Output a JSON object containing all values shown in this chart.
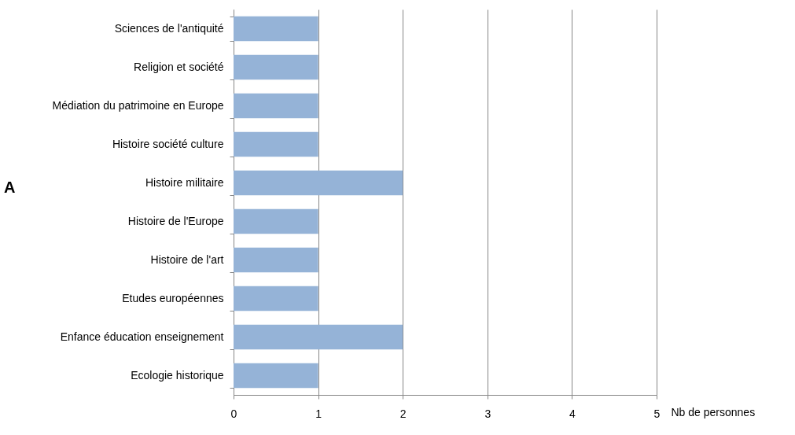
{
  "chart_data": {
    "type": "bar",
    "orientation": "horizontal",
    "categories": [
      "Sciences de l'antiquité",
      "Religion et société",
      "Médiation du patrimoine en Europe",
      "Histoire société culture",
      "Histoire militaire",
      "Histoire de l'Europe",
      "Histoire de l'art",
      "Etudes européennes",
      "Enfance éducation enseignement",
      "Ecologie historique"
    ],
    "values": [
      1,
      1,
      1,
      1,
      2,
      1,
      1,
      1,
      2,
      1
    ],
    "color": "#95b3d7",
    "xlim": [
      0,
      5
    ],
    "xticks": [
      0,
      1,
      2,
      3,
      4,
      5
    ],
    "xlabel": "Nb de personnes",
    "annotations": [
      "A"
    ],
    "grid": "x"
  }
}
